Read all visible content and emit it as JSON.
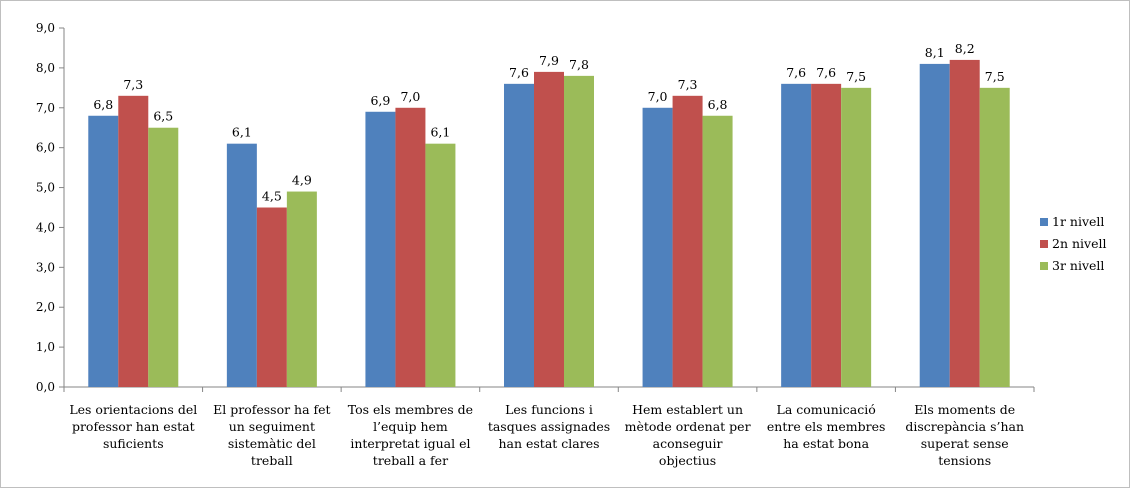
{
  "chart_data": {
    "type": "bar",
    "title": "",
    "xlabel": "",
    "ylabel": "",
    "ylim": [
      0,
      9
    ],
    "yticks": [
      "0,0",
      "1,0",
      "2,0",
      "3,0",
      "4,0",
      "5,0",
      "6,0",
      "7,0",
      "8,0",
      "9,0"
    ],
    "grid": false,
    "legend_position": "right",
    "categories": [
      [
        "Les orientacions del",
        "professor han estat",
        "suficients"
      ],
      [
        "El professor ha fet",
        "un seguiment",
        "sistemàtic del",
        "treball"
      ],
      [
        "Tos els membres de",
        "l’equip hem",
        "interpretat igual el",
        "treball a fer"
      ],
      [
        "Les funcions i",
        "tasques assignades",
        "han estat clares"
      ],
      [
        "Hem establert un",
        "mètode ordenat per",
        "aconseguir",
        "objectius"
      ],
      [
        "La comunicació",
        "entre els membres",
        "ha estat bona"
      ],
      [
        "Els moments de",
        "discrepància s’han",
        "superat sense",
        "tensions"
      ]
    ],
    "series": [
      {
        "name": "1r nivell",
        "color": "#4f81bd",
        "values": [
          6.8,
          6.1,
          6.9,
          7.6,
          7.0,
          7.6,
          8.1
        ],
        "labels": [
          "6,8",
          "6,1",
          "6,9",
          "7,6",
          "7,0",
          "7,6",
          "8,1"
        ]
      },
      {
        "name": "2n nivell",
        "color": "#c0504d",
        "values": [
          7.3,
          4.5,
          7.0,
          7.9,
          7.3,
          7.6,
          8.2
        ],
        "labels": [
          "7,3",
          "4,5",
          "7,0",
          "7,9",
          "7,3",
          "7,6",
          "8,2"
        ]
      },
      {
        "name": "3r nivell",
        "color": "#9bbb59",
        "values": [
          6.5,
          4.9,
          6.1,
          7.8,
          6.8,
          7.5,
          7.5
        ],
        "labels": [
          "6,5",
          "4,9",
          "6,1",
          "7,8",
          "6,8",
          "7,5",
          "7,5"
        ]
      }
    ]
  }
}
